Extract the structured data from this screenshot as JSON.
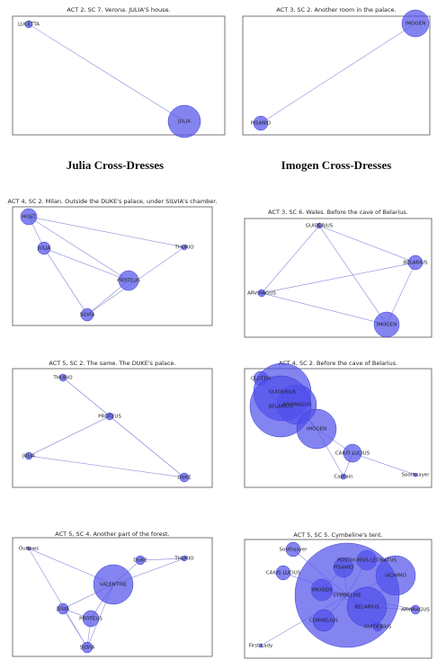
{
  "panels": [
    {
      "title": "ACT 2, SC 7. Verona. JULIA'S house.",
      "nodes": [
        "LUCETTA",
        "JULIA"
      ]
    },
    {
      "title": "ACT 3, SC 2. Another room in the palace.",
      "nodes": [
        "IMOGEN",
        "PISANIO"
      ]
    },
    {
      "title": "ACT 4, SC 2. Milan. Outside the DUKE's palace, under SILVIA's chamber.",
      "nodes": [
        "HOST",
        "JULIA",
        "THURIO",
        "PROTEUS",
        "SILVIA"
      ]
    },
    {
      "title": "ACT 3, SC 6. Wales. Before the cave of Belarius.",
      "nodes": [
        "GUIDERIUS",
        "BELARIUS",
        "ARVIRAGUS",
        "IMOGEN"
      ]
    },
    {
      "title": "ACT 5, SC 2. The same. The DUKE's palace.",
      "nodes": [
        "THURIO",
        "PROTEUS",
        "JULIA",
        "DUKE"
      ]
    },
    {
      "title": "ACT 4, SC 2. Before the cave of Belarius.",
      "nodes": [
        "CLOTEN",
        "GUIDERIUS",
        "ARVIRAGUS",
        "BELARIUS",
        "IMOGEN",
        "CAIUS LUCIUS",
        "Captain",
        "Soothsayer"
      ]
    },
    {
      "title": "ACT 5, SC 4. Another part of the forest.",
      "nodes": [
        "Outlaws",
        "VALENTINE",
        "DUKE",
        "THURIO",
        "JULIA",
        "PROTEUS",
        "SILVIA"
      ]
    },
    {
      "title": "ACT 5, SC 5. Cymbeline's tent.",
      "nodes": [
        "Soothsayer",
        "POSTHUMUS LEONATUS",
        "PISANIO",
        "IACHIMO",
        "CAIUS LUCIUS",
        "IMOGEN",
        "CYMBELINE",
        "BELARIUS",
        "ARVIRAGUS",
        "CORNELIUS",
        "GUIDERIUS",
        "First Lady"
      ]
    }
  ],
  "captions": [
    "Julia Cross-Dresses",
    "Imogen Cross-Dresses"
  ]
}
